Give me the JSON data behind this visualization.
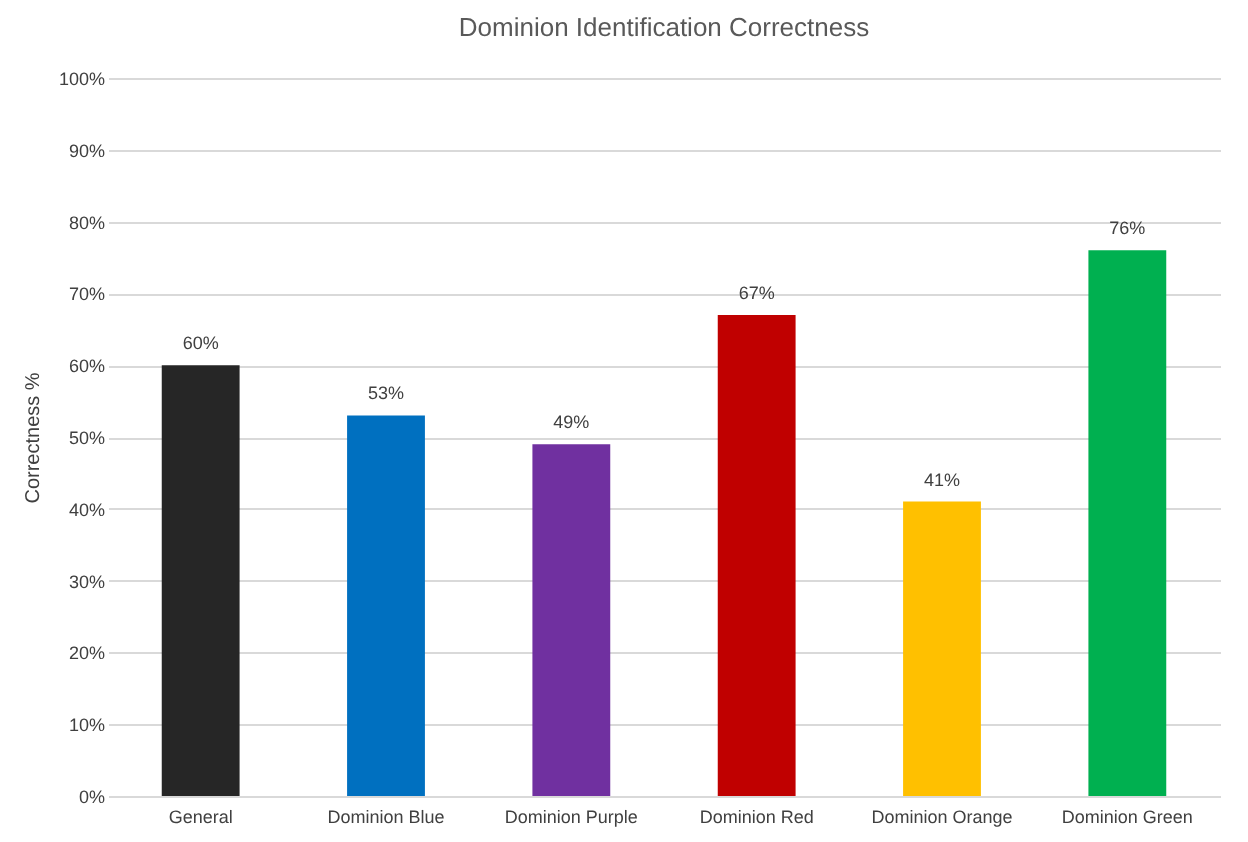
{
  "chart_data": {
    "type": "bar",
    "title": "Dominion Identification Correctness",
    "ylabel": "Correctness %",
    "categories": [
      "General",
      "Dominion Blue",
      "Dominion Purple",
      "Dominion Red",
      "Dominion Orange",
      "Dominion Green"
    ],
    "values": [
      60,
      53,
      49,
      67,
      41,
      76
    ],
    "value_labels": [
      "60%",
      "53%",
      "49%",
      "67%",
      "41%",
      "76%"
    ],
    "colors": [
      "#262626",
      "#0070c0",
      "#7030a0",
      "#c00000",
      "#ffc000",
      "#00b050"
    ],
    "ylim": [
      0,
      100
    ],
    "yticks": [
      {
        "value": 0,
        "label": "0%"
      },
      {
        "value": 10,
        "label": "10%"
      },
      {
        "value": 20,
        "label": "20%"
      },
      {
        "value": 30,
        "label": "30%"
      },
      {
        "value": 40,
        "label": "40%"
      },
      {
        "value": 50,
        "label": "50%"
      },
      {
        "value": 60,
        "label": "60%"
      },
      {
        "value": 70,
        "label": "70%"
      },
      {
        "value": 80,
        "label": "80%"
      },
      {
        "value": 90,
        "label": "90%"
      },
      {
        "value": 100,
        "label": "100%"
      }
    ],
    "grid": "y",
    "legend": false
  }
}
